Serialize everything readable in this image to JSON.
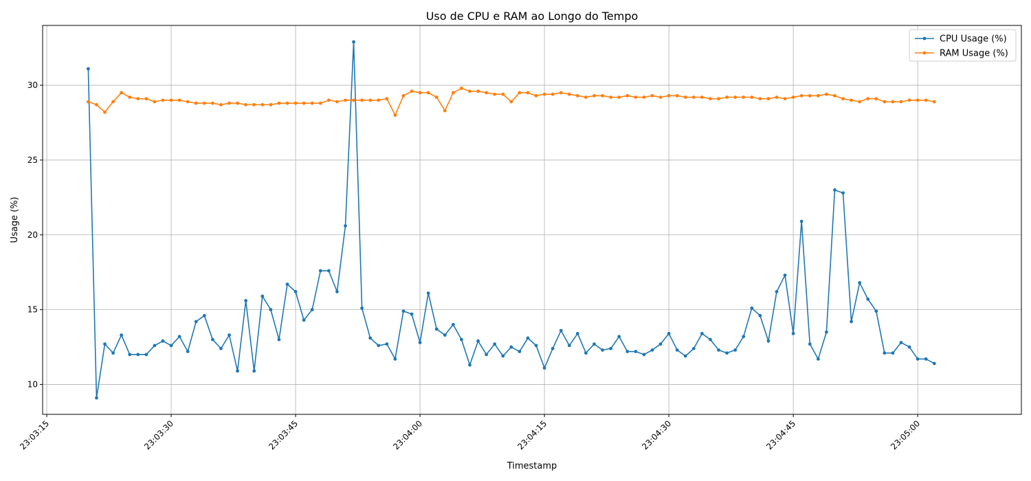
{
  "chart_data": {
    "type": "line",
    "title": "Uso de CPU e RAM ao Longo do Tempo",
    "xlabel": "Timestamp",
    "ylabel": "Usage (%)",
    "x_start": "23:03:20",
    "x_step_seconds": 1,
    "xlim": [
      "23:03:14.5",
      "23:05:12.5"
    ],
    "x_ticks": [
      "23:03:15",
      "23:03:30",
      "23:03:45",
      "23:04:00",
      "23:04:15",
      "23:04:30",
      "23:04:45",
      "23:05:00"
    ],
    "ylim": [
      8,
      34
    ],
    "y_ticks": [
      10,
      15,
      20,
      25,
      30
    ],
    "grid": true,
    "legend_position": "top-right",
    "series": [
      {
        "name": "CPU Usage (%)",
        "color": "#1f77b4",
        "values": [
          31.1,
          9.1,
          12.7,
          12.1,
          13.3,
          12.0,
          12.0,
          12.0,
          12.6,
          12.9,
          12.6,
          13.2,
          12.2,
          14.2,
          14.6,
          13.0,
          12.4,
          13.3,
          10.9,
          15.6,
          10.9,
          15.9,
          15.0,
          13.0,
          16.7,
          16.2,
          14.3,
          15.0,
          17.6,
          17.6,
          16.2,
          20.6,
          32.9,
          15.1,
          13.1,
          12.6,
          12.7,
          11.7,
          14.9,
          14.7,
          12.8,
          16.1,
          13.7,
          13.3,
          14.0,
          13.0,
          11.3,
          12.9,
          12.0,
          12.7,
          11.9,
          12.5,
          12.2,
          13.1,
          12.6,
          11.1,
          12.4,
          13.6,
          12.6,
          13.4,
          12.1,
          12.7,
          12.3,
          12.4,
          13.2,
          12.2,
          12.2,
          12.0,
          12.3,
          12.7,
          13.4,
          12.3,
          11.9,
          12.4,
          13.4,
          13.0,
          12.3,
          12.1,
          12.3,
          13.2,
          15.1,
          14.6,
          12.9,
          16.2,
          17.3,
          13.4,
          20.9,
          12.7,
          11.7,
          13.5,
          23.0,
          22.8,
          14.2,
          16.8,
          15.7,
          14.9,
          12.1,
          12.1,
          12.8,
          12.5,
          11.7,
          11.7,
          11.4
        ]
      },
      {
        "name": "RAM Usage (%)",
        "color": "#ff7f0e",
        "values": [
          28.9,
          28.7,
          28.2,
          28.9,
          29.5,
          29.2,
          29.1,
          29.1,
          28.9,
          29.0,
          29.0,
          29.0,
          28.9,
          28.8,
          28.8,
          28.8,
          28.7,
          28.8,
          28.8,
          28.7,
          28.7,
          28.7,
          28.7,
          28.8,
          28.8,
          28.8,
          28.8,
          28.8,
          28.8,
          29.0,
          28.9,
          29.0,
          29.0,
          29.0,
          29.0,
          29.0,
          29.1,
          28.0,
          29.3,
          29.6,
          29.5,
          29.5,
          29.2,
          28.3,
          29.5,
          29.8,
          29.6,
          29.6,
          29.5,
          29.4,
          29.4,
          28.9,
          29.5,
          29.5,
          29.3,
          29.4,
          29.4,
          29.5,
          29.4,
          29.3,
          29.2,
          29.3,
          29.3,
          29.2,
          29.2,
          29.3,
          29.2,
          29.2,
          29.3,
          29.2,
          29.3,
          29.3,
          29.2,
          29.2,
          29.2,
          29.1,
          29.1,
          29.2,
          29.2,
          29.2,
          29.2,
          29.1,
          29.1,
          29.2,
          29.1,
          29.2,
          29.3,
          29.3,
          29.3,
          29.4,
          29.3,
          29.1,
          29.0,
          28.9,
          29.1,
          29.1,
          28.9,
          28.9,
          28.9,
          29.0,
          29.0,
          29.0,
          28.9
        ]
      }
    ]
  }
}
